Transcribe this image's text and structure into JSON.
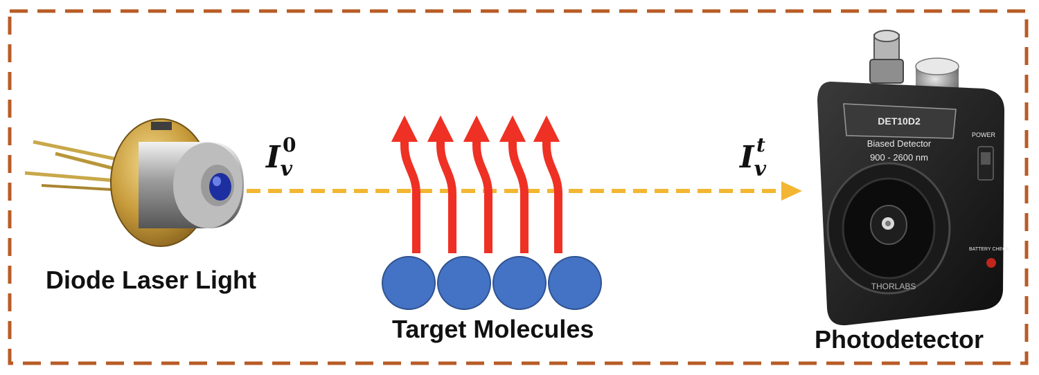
{
  "diagram": {
    "laser_label": "Diode Laser Light",
    "molecules_label": "Target Molecules",
    "detector_label": "Photodetector",
    "incident_intensity": {
      "symbol": "I",
      "subscript": "v",
      "superscript": "0"
    },
    "transmitted_intensity": {
      "symbol": "I",
      "subscript": "v",
      "superscript": "t"
    },
    "detector_text": {
      "model": "DET10D2",
      "type": "Biased Detector",
      "range": "900 - 2600 nm",
      "power": "POWER",
      "battery": "BATTERY CHECK",
      "brand": "THORLABS"
    },
    "colors": {
      "border": "#b85c26",
      "beam": "#f2b632",
      "emission_arrows": "#ee3124",
      "molecules": "#4472c4"
    }
  }
}
